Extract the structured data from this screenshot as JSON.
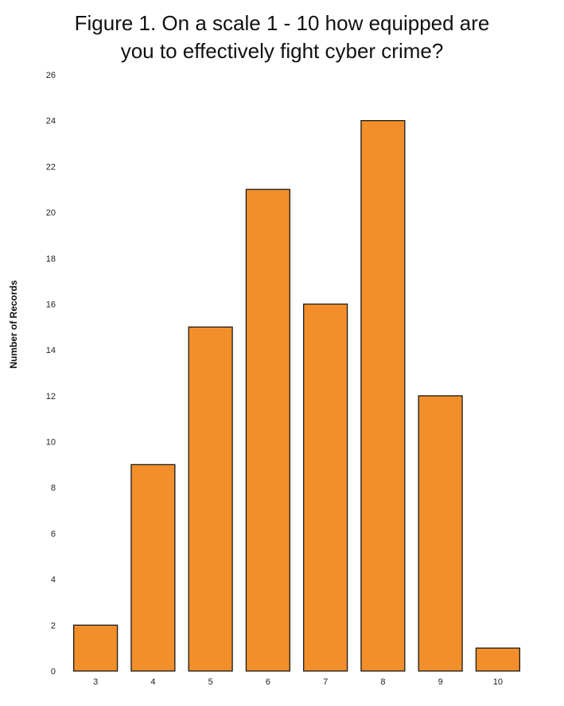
{
  "chart_data": {
    "type": "bar",
    "title_lines": [
      "Figure 1. On a scale 1 - 10 how equipped are",
      "you to effectively fight cyber crime?"
    ],
    "xlabel": "",
    "ylabel": "Number of Records",
    "categories": [
      "3",
      "4",
      "5",
      "6",
      "7",
      "8",
      "9",
      "10"
    ],
    "values": [
      2,
      9,
      15,
      21,
      16,
      24,
      12,
      1
    ],
    "ylim": [
      0,
      26
    ],
    "yticks": [
      "0",
      "2",
      "4",
      "6",
      "8",
      "10",
      "12",
      "14",
      "16",
      "18",
      "20",
      "22",
      "24",
      "26"
    ],
    "grid": false,
    "legend": "none",
    "bar_color": "#f28f2a",
    "bar_edge_color": "#1a1a1a"
  }
}
